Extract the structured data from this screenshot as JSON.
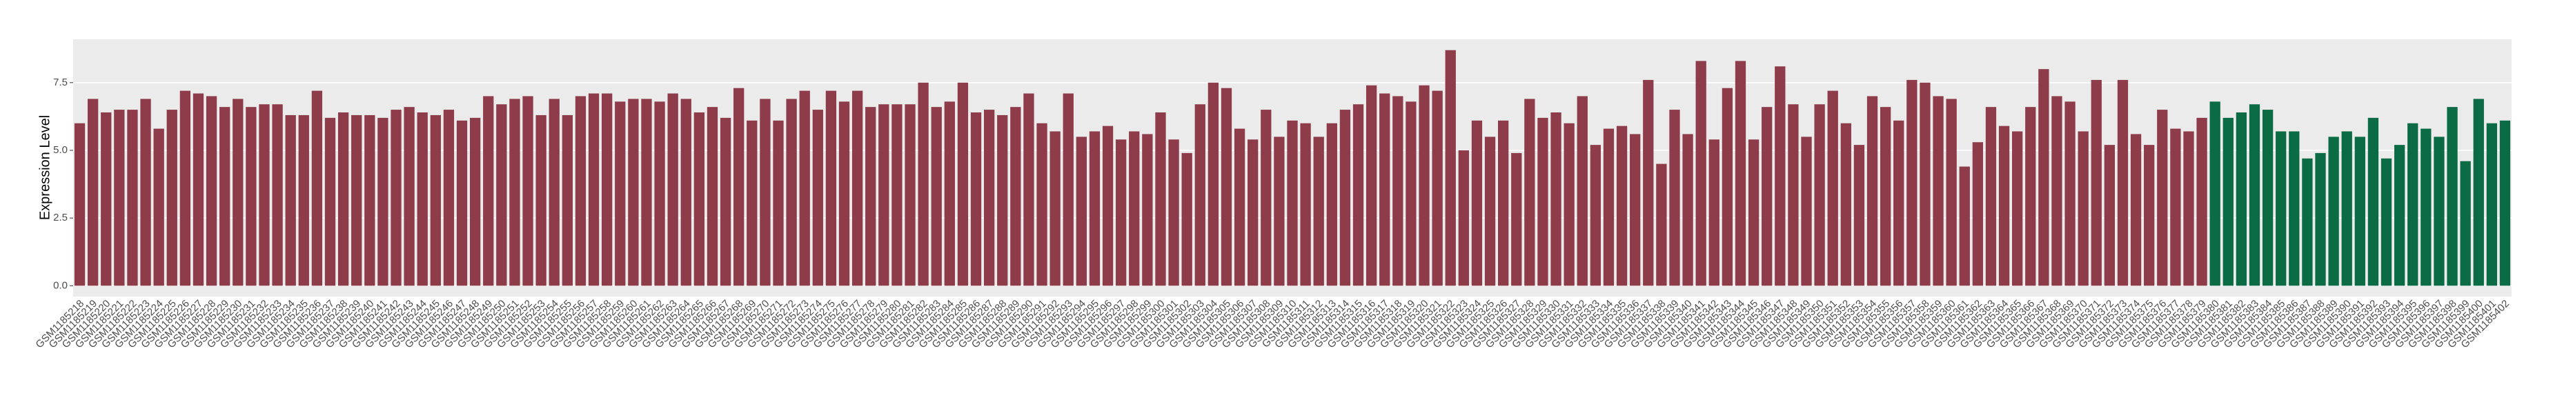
{
  "chart_data": {
    "type": "bar",
    "y_label": "Expression Level",
    "categories": [
      "GSM1185218",
      "GSM1185219",
      "GSM1185220",
      "GSM1185221",
      "GSM1185222",
      "GSM1185223",
      "GSM1185224",
      "GSM1185225",
      "GSM1185226",
      "GSM1185227",
      "GSM1185228",
      "GSM1185229",
      "GSM1185230",
      "GSM1185231",
      "GSM1185232",
      "GSM1185233",
      "GSM1185234",
      "GSM1185235",
      "GSM1185236",
      "GSM1185237",
      "GSM1185238",
      "GSM1185239",
      "GSM1185240",
      "GSM1185241",
      "GSM1185242",
      "GSM1185243",
      "GSM1185244",
      "GSM1185245",
      "GSM1185246",
      "GSM1185247",
      "GSM1185248",
      "GSM1185249",
      "GSM1185250",
      "GSM1185251",
      "GSM1185252",
      "GSM1185253",
      "GSM1185254",
      "GSM1185255",
      "GSM1185256",
      "GSM1185257",
      "GSM1185258",
      "GSM1185259",
      "GSM1185260",
      "GSM1185261",
      "GSM1185262",
      "GSM1185263",
      "GSM1185264",
      "GSM1185265",
      "GSM1185266",
      "GSM1185267",
      "GSM1185268",
      "GSM1185269",
      "GSM1185270",
      "GSM1185271",
      "GSM1185272",
      "GSM1185273",
      "GSM1185274",
      "GSM1185275",
      "GSM1185276",
      "GSM1185277",
      "GSM1185278",
      "GSM1185279",
      "GSM1185280",
      "GSM1185281",
      "GSM1185282",
      "GSM1185283",
      "GSM1185284",
      "GSM1185285",
      "GSM1185286",
      "GSM1185287",
      "GSM1185288",
      "GSM1185289",
      "GSM1185290",
      "GSM1185291",
      "GSM1185292",
      "GSM1185293",
      "GSM1185294",
      "GSM1185295",
      "GSM1185296",
      "GSM1185297",
      "GSM1185298",
      "GSM1185299",
      "GSM1185300",
      "GSM1185301",
      "GSM1185302",
      "GSM1185303",
      "GSM1185304",
      "GSM1185305",
      "GSM1185306",
      "GSM1185307",
      "GSM1185308",
      "GSM1185309",
      "GSM1185310",
      "GSM1185311",
      "GSM1185312",
      "GSM1185313",
      "GSM1185314",
      "GSM1185315",
      "GSM1185316",
      "GSM1185317",
      "GSM1185318",
      "GSM1185319",
      "GSM1185320",
      "GSM1185321",
      "GSM1185322",
      "GSM1185323",
      "GSM1185324",
      "GSM1185325",
      "GSM1185326",
      "GSM1185327",
      "GSM1185328",
      "GSM1185329",
      "GSM1185330",
      "GSM1185331",
      "GSM1185332",
      "GSM1185333",
      "GSM1185334",
      "GSM1185335",
      "GSM1185336",
      "GSM1185337",
      "GSM1185338",
      "GSM1185339",
      "GSM1185340",
      "GSM1185341",
      "GSM1185342",
      "GSM1185343",
      "GSM1185344",
      "GSM1185345",
      "GSM1185346",
      "GSM1185347",
      "GSM1185348",
      "GSM1185349",
      "GSM1185350",
      "GSM1185351",
      "GSM1185352",
      "GSM1185353",
      "GSM1185354",
      "GSM1185355",
      "GSM1185356",
      "GSM1185357",
      "GSM1185358",
      "GSM1185359",
      "GSM1185360",
      "GSM1185361",
      "GSM1185362",
      "GSM1185363",
      "GSM1185364",
      "GSM1185365",
      "GSM1185366",
      "GSM1185367",
      "GSM1185368",
      "GSM1185369",
      "GSM1185370",
      "GSM1185371",
      "GSM1185372",
      "GSM1185373",
      "GSM1185374",
      "GSM1185375",
      "GSM1185376",
      "GSM1185377",
      "GSM1185378",
      "GSM1185379",
      "GSM1185380",
      "GSM1185381",
      "GSM1185382",
      "GSM1185383",
      "GSM1185384",
      "GSM1185385",
      "GSM1185386",
      "GSM1185387",
      "GSM1185388",
      "GSM1185389",
      "GSM1185390",
      "GSM1185391",
      "GSM1185392",
      "GSM1185393",
      "GSM1185394",
      "GSM1185395",
      "GSM1185396",
      "GSM1185397",
      "GSM1185398",
      "GSM1185399",
      "GSM1185400",
      "GSM1185401",
      "GSM1185402"
    ],
    "values": [
      6.0,
      6.9,
      6.4,
      6.5,
      6.5,
      6.9,
      5.8,
      6.5,
      7.2,
      7.1,
      7.0,
      6.6,
      6.9,
      6.6,
      6.7,
      6.7,
      6.3,
      6.3,
      7.2,
      6.2,
      6.4,
      6.3,
      6.3,
      6.2,
      6.5,
      6.6,
      6.4,
      6.3,
      6.5,
      6.1,
      6.2,
      7.0,
      6.7,
      6.9,
      7.0,
      6.3,
      6.9,
      6.3,
      7.0,
      7.1,
      7.1,
      6.8,
      6.9,
      6.9,
      6.8,
      7.1,
      6.9,
      6.4,
      6.6,
      6.2,
      7.3,
      6.1,
      6.9,
      6.1,
      6.9,
      7.2,
      6.5,
      7.2,
      6.8,
      7.2,
      6.6,
      6.7,
      6.7,
      6.7,
      7.5,
      6.6,
      6.8,
      7.5,
      6.4,
      6.5,
      6.3,
      6.6,
      7.1,
      6.0,
      5.7,
      7.1,
      5.5,
      5.7,
      5.9,
      5.4,
      5.7,
      5.6,
      6.4,
      5.4,
      4.9,
      6.7,
      7.5,
      7.3,
      5.8,
      5.4,
      6.5,
      5.5,
      6.1,
      6.0,
      5.5,
      6.0,
      6.5,
      6.7,
      7.4,
      7.1,
      7.0,
      6.8,
      7.4,
      7.2,
      8.7,
      5.0,
      6.1,
      5.5,
      6.1,
      4.9,
      6.9,
      6.2,
      6.4,
      6.0,
      7.0,
      5.2,
      5.8,
      5.9,
      5.6,
      7.6,
      4.5,
      6.5,
      5.6,
      8.3,
      5.4,
      7.3,
      8.3,
      5.4,
      6.6,
      8.1,
      6.7,
      5.5,
      6.7,
      7.2,
      6.0,
      5.2,
      7.0,
      6.6,
      6.1,
      7.6,
      7.5,
      7.0,
      6.9,
      4.4,
      5.3,
      6.6,
      5.9,
      5.7,
      6.6,
      8.0,
      7.0,
      6.8,
      5.7,
      7.6,
      5.2,
      7.6,
      5.6,
      5.2,
      6.5,
      5.8,
      5.7,
      6.2,
      6.8,
      6.2,
      6.4,
      6.7,
      6.5,
      5.7,
      5.7,
      4.7,
      4.9,
      5.5,
      5.7,
      5.5,
      6.2,
      4.7,
      5.2,
      6.0,
      5.8,
      5.5,
      6.6,
      4.6,
      6.9,
      6.0,
      6.1
    ],
    "colors": [
      "#8e3b4a",
      "#8e3b4a",
      "#8e3b4a",
      "#8e3b4a",
      "#8e3b4a",
      "#8e3b4a",
      "#8e3b4a",
      "#8e3b4a",
      "#8e3b4a",
      "#8e3b4a",
      "#8e3b4a",
      "#8e3b4a",
      "#8e3b4a",
      "#8e3b4a",
      "#8e3b4a",
      "#8e3b4a",
      "#8e3b4a",
      "#8e3b4a",
      "#8e3b4a",
      "#8e3b4a",
      "#8e3b4a",
      "#8e3b4a",
      "#8e3b4a",
      "#8e3b4a",
      "#8e3b4a",
      "#8e3b4a",
      "#8e3b4a",
      "#8e3b4a",
      "#8e3b4a",
      "#8e3b4a",
      "#8e3b4a",
      "#8e3b4a",
      "#8e3b4a",
      "#8e3b4a",
      "#8e3b4a",
      "#8e3b4a",
      "#8e3b4a",
      "#8e3b4a",
      "#8e3b4a",
      "#8e3b4a",
      "#8e3b4a",
      "#8e3b4a",
      "#8e3b4a",
      "#8e3b4a",
      "#8e3b4a",
      "#8e3b4a",
      "#8e3b4a",
      "#8e3b4a",
      "#8e3b4a",
      "#8e3b4a",
      "#8e3b4a",
      "#8e3b4a",
      "#8e3b4a",
      "#8e3b4a",
      "#8e3b4a",
      "#8e3b4a",
      "#8e3b4a",
      "#8e3b4a",
      "#8e3b4a",
      "#8e3b4a",
      "#8e3b4a",
      "#8e3b4a",
      "#8e3b4a",
      "#8e3b4a",
      "#8e3b4a",
      "#8e3b4a",
      "#8e3b4a",
      "#8e3b4a",
      "#8e3b4a",
      "#8e3b4a",
      "#8e3b4a",
      "#8e3b4a",
      "#8e3b4a",
      "#8e3b4a",
      "#8e3b4a",
      "#8e3b4a",
      "#8e3b4a",
      "#8e3b4a",
      "#8e3b4a",
      "#8e3b4a",
      "#8e3b4a",
      "#8e3b4a",
      "#8e3b4a",
      "#8e3b4a",
      "#8e3b4a",
      "#8e3b4a",
      "#8e3b4a",
      "#8e3b4a",
      "#8e3b4a",
      "#8e3b4a",
      "#8e3b4a",
      "#8e3b4a",
      "#8e3b4a",
      "#8e3b4a",
      "#8e3b4a",
      "#8e3b4a",
      "#8e3b4a",
      "#8e3b4a",
      "#8e3b4a",
      "#8e3b4a",
      "#8e3b4a",
      "#8e3b4a",
      "#8e3b4a",
      "#8e3b4a",
      "#8e3b4a",
      "#8e3b4a",
      "#8e3b4a",
      "#8e3b4a",
      "#8e3b4a",
      "#8e3b4a",
      "#8e3b4a",
      "#8e3b4a",
      "#8e3b4a",
      "#8e3b4a",
      "#8e3b4a",
      "#8e3b4a",
      "#8e3b4a",
      "#8e3b4a",
      "#8e3b4a",
      "#8e3b4a",
      "#8e3b4a",
      "#8e3b4a",
      "#8e3b4a",
      "#8e3b4a",
      "#8e3b4a",
      "#8e3b4a",
      "#8e3b4a",
      "#8e3b4a",
      "#8e3b4a",
      "#8e3b4a",
      "#8e3b4a",
      "#8e3b4a",
      "#8e3b4a",
      "#8e3b4a",
      "#8e3b4a",
      "#8e3b4a",
      "#8e3b4a",
      "#8e3b4a",
      "#8e3b4a",
      "#8e3b4a",
      "#8e3b4a",
      "#8e3b4a",
      "#8e3b4a",
      "#8e3b4a",
      "#8e3b4a",
      "#8e3b4a",
      "#8e3b4a",
      "#8e3b4a",
      "#8e3b4a",
      "#8e3b4a",
      "#8e3b4a",
      "#8e3b4a",
      "#8e3b4a",
      "#8e3b4a",
      "#8e3b4a",
      "#8e3b4a",
      "#8e3b4a",
      "#8e3b4a",
      "#8e3b4a",
      "#8e3b4a",
      "#8e3b4a",
      "#8e3b4a",
      "#0b6b45",
      "#0b6b45",
      "#0b6b45",
      "#0b6b45",
      "#0b6b45",
      "#0b6b45",
      "#0b6b45",
      "#0b6b45",
      "#0b6b45",
      "#0b6b45",
      "#0b6b45",
      "#0b6b45",
      "#0b6b45",
      "#0b6b45",
      "#0b6b45",
      "#0b6b45",
      "#0b6b45",
      "#0b6b45",
      "#0b6b45",
      "#0b6b45",
      "#0b6b45",
      "#0b6b45",
      "#0b6b45"
    ],
    "ylim": [
      -0.4,
      9.1
    ],
    "yticks": [
      {
        "value": 0,
        "label": "0.0"
      },
      {
        "value": 2.5,
        "label": "2.5"
      },
      {
        "value": 5,
        "label": "5.0"
      },
      {
        "value": 7.5,
        "label": "7.5"
      }
    ],
    "grid": true
  }
}
